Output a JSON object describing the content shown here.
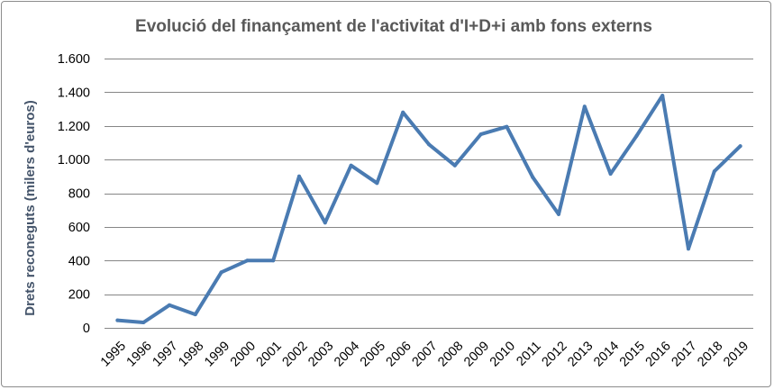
{
  "chart_data": {
    "type": "line",
    "title": "Evolució del finançament de l'activitat d'I+D+i amb fons externs",
    "xlabel": "",
    "ylabel": "Drets reconeguts (milers d'euros)",
    "ylim": [
      0,
      1600
    ],
    "yticks": [
      0,
      200,
      400,
      600,
      800,
      1000,
      1200,
      1400,
      1600
    ],
    "ytick_labels": [
      "0",
      "200",
      "400",
      "600",
      "800",
      "1.000",
      "1.200",
      "1.400",
      "1.600"
    ],
    "categories": [
      "1995",
      "1996",
      "1997",
      "1998",
      "1999",
      "2000",
      "2001",
      "2002",
      "2003",
      "2004",
      "2005",
      "2006",
      "2007",
      "2008",
      "2009",
      "2010",
      "2011",
      "2012",
      "2013",
      "2014",
      "2015",
      "2016",
      "2017",
      "2018",
      "2019"
    ],
    "series": [
      {
        "values": [
          45,
          32,
          135,
          80,
          330,
          400,
          400,
          900,
          625,
          965,
          860,
          1280,
          1090,
          965,
          1150,
          1195,
          895,
          675,
          1315,
          915,
          1140,
          1380,
          470,
          930,
          1080
        ]
      }
    ],
    "grid": true,
    "legend": "none",
    "colors": {
      "line": "#4a7bb2",
      "grid": "#868686",
      "title": "#595959",
      "ylabel": "#44546a"
    }
  }
}
